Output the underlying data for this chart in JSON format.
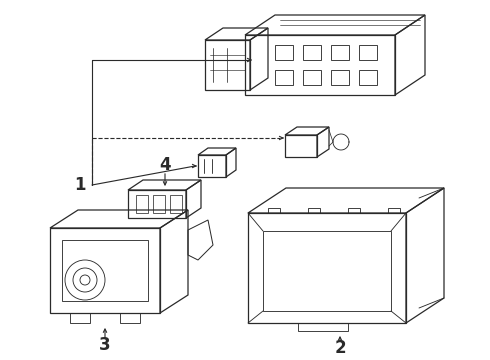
{
  "bg_color": "#ffffff",
  "line_color": "#2a2a2a",
  "label_fontsize": 12,
  "label_fontweight": "bold",
  "fig_width": 4.9,
  "fig_height": 3.6,
  "dpi": 100,
  "lw": 0.9
}
